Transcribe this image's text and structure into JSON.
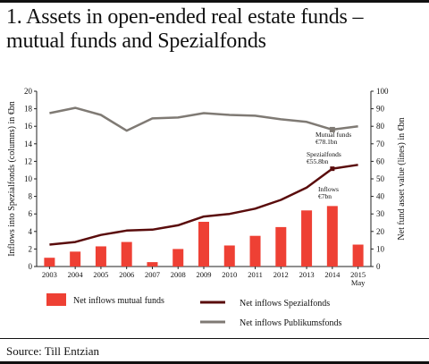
{
  "title_line1": "1. Assets in open-ended real estate funds –",
  "title_line2": "mutual funds and Spezialfonds",
  "source": "Source: Till Entzian",
  "colors": {
    "bars": "#ee4034",
    "spezial": "#5a0c0c",
    "publikums": "#7f7a74"
  },
  "chart_data": {
    "type": "bar",
    "categories": [
      "2003",
      "2004",
      "2005",
      "2006",
      "2007",
      "2008",
      "2009",
      "2010",
      "2011",
      "2012",
      "2013",
      "2014",
      "2015"
    ],
    "tick_labels": [
      "2003",
      "2004",
      "2005",
      "2006",
      "2007",
      "2008",
      "2009",
      "2010",
      "2011",
      "2012",
      "2013",
      "2014",
      "2015"
    ],
    "tick_sublabels": [
      "",
      "",
      "",
      "",
      "",
      "",
      "",
      "",
      "",
      "",
      "",
      "",
      "May"
    ],
    "ylabel": "Inflows into Spezialfonds (columns) in €bn",
    "y2label": "Net fund asset value (lines) in €bn",
    "ylim": [
      0,
      20
    ],
    "y2lim": [
      0,
      100
    ],
    "yticks": [
      "0",
      "2",
      "4",
      "6",
      "8",
      "10",
      "12",
      "14",
      "16",
      "18",
      "20"
    ],
    "y2ticks": [
      "0",
      "10",
      "20",
      "30",
      "40",
      "50",
      "60",
      "70",
      "80",
      "90",
      "100"
    ],
    "series": [
      {
        "name": "Net inflows mutual funds",
        "type": "bar",
        "axis": "left",
        "values": [
          1.0,
          1.7,
          2.3,
          2.8,
          0.5,
          2.0,
          5.1,
          2.4,
          3.5,
          4.5,
          6.4,
          6.9,
          2.5
        ]
      },
      {
        "name": "Net inflows Spezialfonds",
        "type": "line",
        "axis": "right",
        "values": [
          12.5,
          14,
          18,
          20.5,
          21,
          23.5,
          28.5,
          30,
          33,
          38,
          45,
          55.8,
          58
        ]
      },
      {
        "name": "Net inflows Publikumsfonds",
        "type": "line",
        "axis": "right",
        "values": [
          87.5,
          90.5,
          86.5,
          77.5,
          84.5,
          85,
          87.5,
          86.5,
          86,
          84,
          82.5,
          78.1,
          80
        ]
      }
    ],
    "annotations": [
      {
        "line1": "Mutual funds",
        "line2": "€78.1bn"
      },
      {
        "line1": "Spezialfonds",
        "line2": "€55.8bn"
      },
      {
        "line1": "Inflows",
        "line2": "€7bn"
      }
    ],
    "legend": [
      "Net inflows mutual funds",
      "Net inflows Spezialfonds",
      "Net inflows Publikumsfonds"
    ],
    "grid": false,
    "legend_position": "bottom"
  }
}
